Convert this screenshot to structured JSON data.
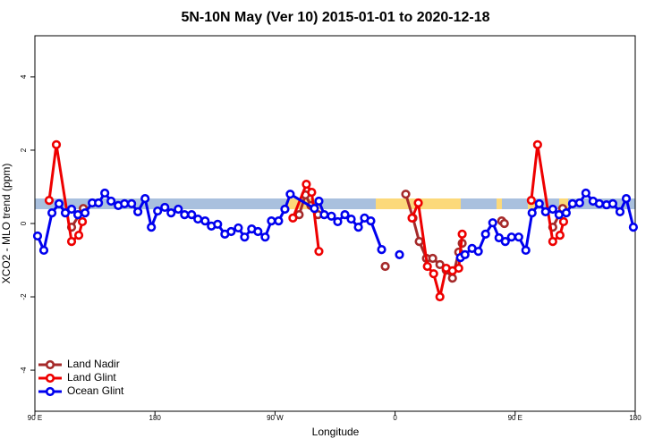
{
  "chart_data": {
    "type": "line",
    "title": "5N-10N May (Ver 10)   2015-01-01 to 2020-12-18",
    "x_label": "Longitude",
    "y_label": "XCO2 - MLO trend (ppm)",
    "xlim": [
      90,
      540
    ],
    "ylim": [
      -5.12,
      5.12
    ],
    "xticks": [
      {
        "value": 90,
        "label": "90 E"
      },
      {
        "value": 180,
        "label": "180"
      },
      {
        "value": 270,
        "label": "90 W"
      },
      {
        "value": 360,
        "label": "0"
      },
      {
        "value": 450,
        "label": "90 E"
      },
      {
        "value": 540,
        "label": "180"
      }
    ],
    "yticks": [
      -4,
      -2,
      0,
      2,
      4
    ],
    "legend": "bottom-left",
    "series": [
      {
        "name": "Land Nadir",
        "color": "#a52a2a",
        "x": [
          117.5,
          126.3,
          null,
          288.1,
          292.8,
          296.9,
          302.2,
          null,
          352.6,
          null,
          368.0,
          373.4,
          378.1,
          383.5,
          388.2,
          393.6,
          398.3,
          403.0,
          407.7,
          410.3,
          null,
          439.9,
          441.9,
          null,
          478.2,
          485.6
        ],
        "values": [
          -0.1,
          0.41,
          null,
          0.24,
          0.78,
          0.49,
          0.24,
          null,
          -1.17,
          null,
          0.8,
          0.15,
          -0.49,
          -0.95,
          -0.95,
          -1.12,
          -1.27,
          -1.49,
          -0.78,
          -0.54,
          null,
          0.07,
          0.0,
          null,
          -0.1,
          0.41
        ]
      },
      {
        "name": "Land Glint",
        "color": "#ee0000",
        "x": [
          100.7,
          106.1,
          117.5,
          122.9,
          125.6,
          null,
          283.4,
          293.5,
          297.5,
          302.9,
          null,
          372.7,
          377.4,
          384.2,
          388.9,
          393.6,
          398.3,
          403.0,
          407.7,
          410.3,
          null,
          462.1,
          466.8,
          478.2,
          483.6,
          486.3
        ],
        "values": [
          0.63,
          2.15,
          -0.49,
          -0.32,
          0.05,
          null,
          0.15,
          1.07,
          0.85,
          -0.76,
          null,
          0.15,
          0.56,
          -1.17,
          -1.37,
          -2.0,
          -1.22,
          -1.29,
          -1.22,
          -0.29,
          null,
          0.63,
          2.15,
          -0.49,
          -0.32,
          0.05
        ]
      },
      {
        "name": "Ocean Glint",
        "color": "#0000ee",
        "x": [
          92.0,
          96.7,
          102.8,
          108.1,
          112.8,
          117.5,
          122.2,
          127.6,
          133.0,
          137.7,
          142.4,
          147.1,
          152.5,
          157.2,
          162.5,
          167.2,
          172.6,
          177.3,
          182.0,
          187.4,
          192.1,
          197.5,
          202.2,
          207.5,
          212.2,
          217.6,
          222.3,
          227.0,
          232.4,
          237.1,
          242.5,
          247.2,
          252.5,
          257.2,
          262.6,
          267.3,
          272.7,
          277.4,
          281.4,
          299.5,
          302.9,
          306.9,
          312.3,
          317.0,
          322.4,
          327.1,
          332.5,
          337.1,
          341.8,
          349.9,
          null,
          363.3,
          null,
          409.0,
          412.4,
          417.7,
          422.4,
          427.8,
          433.2,
          437.9,
          442.6,
          447.3,
          452.7,
          458.0,
          462.7,
          468.1,
          472.8,
          478.2,
          482.9,
          488.3,
          493.0,
          498.3,
          503.0,
          508.4,
          513.1,
          518.5,
          523.2,
          528.6,
          533.3,
          538.6
        ],
        "values": [
          -0.34,
          -0.73,
          0.29,
          0.54,
          0.29,
          0.39,
          0.24,
          0.29,
          0.56,
          0.56,
          0.83,
          0.61,
          0.49,
          0.54,
          0.54,
          0.32,
          0.68,
          -0.1,
          0.34,
          0.44,
          0.29,
          0.39,
          0.24,
          0.24,
          0.12,
          0.07,
          -0.07,
          -0.02,
          -0.29,
          -0.22,
          -0.12,
          -0.37,
          -0.15,
          -0.22,
          -0.37,
          0.07,
          0.07,
          0.39,
          0.8,
          0.41,
          0.61,
          0.24,
          0.2,
          0.05,
          0.24,
          0.12,
          -0.1,
          0.15,
          0.07,
          -0.71,
          null,
          -0.85,
          null,
          -0.93,
          -0.85,
          -0.68,
          -0.76,
          -0.29,
          0.02,
          -0.39,
          -0.49,
          -0.37,
          -0.37,
          -0.73,
          0.29,
          0.54,
          0.32,
          0.39,
          0.24,
          0.29,
          0.54,
          0.56,
          0.83,
          0.61,
          0.54,
          0.51,
          0.54,
          0.32,
          0.68,
          -0.1
        ]
      }
    ]
  }
}
